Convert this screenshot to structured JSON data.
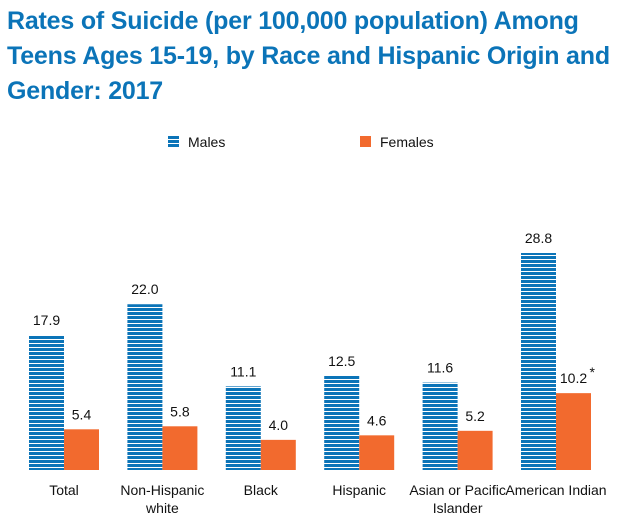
{
  "chart_data": {
    "type": "bar",
    "title": "Rates of Suicide (per 100,000 population) Among Teens Ages 15-19, by Race and Hispanic Origin and Gender: 2017",
    "categories": [
      [
        "Total"
      ],
      [
        "Non-Hispanic",
        "white"
      ],
      [
        "Black"
      ],
      [
        "Hispanic"
      ],
      [
        "Asian or Pacific",
        "Islander"
      ],
      [
        "American Indian"
      ]
    ],
    "series": [
      {
        "name": "Males",
        "values": [
          17.9,
          22.0,
          11.1,
          12.5,
          11.6,
          28.8
        ],
        "labels": [
          "17.9",
          "22.0",
          "11.1",
          "12.5",
          "11.6",
          "28.8"
        ],
        "color": "#0b74b8",
        "pattern": "horizontal-stripes"
      },
      {
        "name": "Females",
        "values": [
          5.4,
          5.8,
          4.0,
          4.6,
          5.2,
          10.2
        ],
        "labels": [
          "5.4",
          "5.8",
          "4.0",
          "4.6",
          "5.2",
          "10.2"
        ],
        "color": "#f26a2e",
        "pattern": "solid"
      }
    ],
    "annotations": [
      {
        "category": "American Indian",
        "series": "Females",
        "text": "*"
      }
    ],
    "ylim": [
      0,
      28.8
    ],
    "grid": false,
    "legend": "top-center",
    "xlabel": "",
    "ylabel": ""
  }
}
